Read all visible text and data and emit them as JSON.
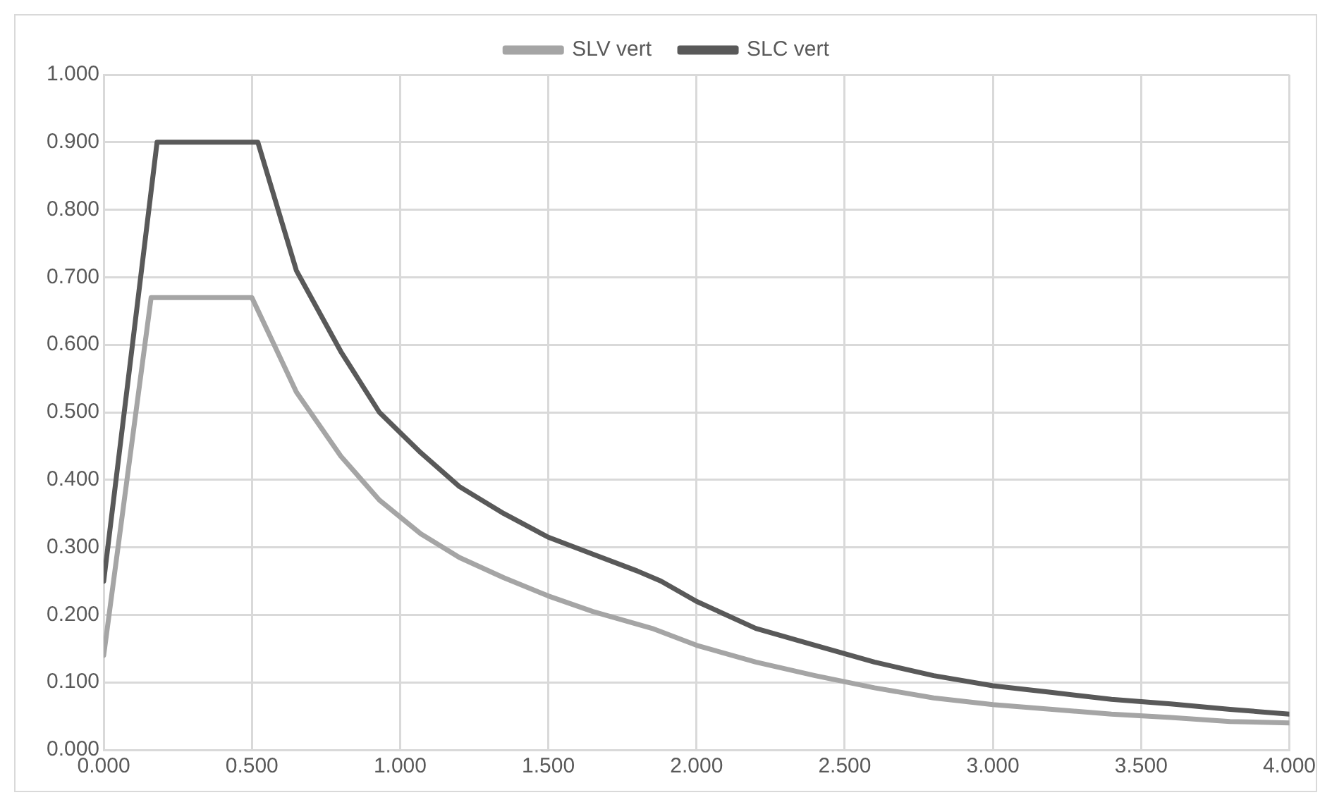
{
  "chart_data": {
    "type": "line",
    "legend": "top",
    "grid": true,
    "marker": "none",
    "line_style": "solid",
    "xlim": [
      0,
      4
    ],
    "xticks": [
      {
        "value": 0,
        "label": "0.000"
      },
      {
        "value": 0.5,
        "label": "0.500"
      },
      {
        "value": 1,
        "label": "1.000"
      },
      {
        "value": 1.5,
        "label": "1.500"
      },
      {
        "value": 2,
        "label": "2.000"
      },
      {
        "value": 2.5,
        "label": "2.500"
      },
      {
        "value": 3,
        "label": "3.000"
      },
      {
        "value": 3.5,
        "label": "3.500"
      },
      {
        "value": 4,
        "label": "4.000"
      }
    ],
    "ylim": [
      0,
      1
    ],
    "yticks": [
      {
        "value": 0,
        "label": "0.000"
      },
      {
        "value": 0.1,
        "label": "0.100"
      },
      {
        "value": 0.2,
        "label": "0.200"
      },
      {
        "value": 0.3,
        "label": "0.300"
      },
      {
        "value": 0.4,
        "label": "0.400"
      },
      {
        "value": 0.5,
        "label": "0.500"
      },
      {
        "value": 0.6,
        "label": "0.600"
      },
      {
        "value": 0.7,
        "label": "0.700"
      },
      {
        "value": 0.8,
        "label": "0.800"
      },
      {
        "value": 0.9,
        "label": "0.900"
      },
      {
        "value": 1,
        "label": "1.000"
      }
    ],
    "series": [
      {
        "name": "SLV vert",
        "color": "#a5a5a5",
        "x": [
          0,
          0.16,
          0.5,
          0.65,
          0.8,
          0.93,
          1.07,
          1.2,
          1.35,
          1.5,
          1.65,
          1.85,
          2.0,
          2.2,
          2.4,
          2.6,
          2.8,
          3.0,
          3.2,
          3.4,
          3.6,
          3.8,
          4.0
        ],
        "values": [
          0.14,
          0.67,
          0.67,
          0.53,
          0.435,
          0.37,
          0.32,
          0.285,
          0.255,
          0.228,
          0.205,
          0.18,
          0.155,
          0.13,
          0.11,
          0.092,
          0.077,
          0.067,
          0.06,
          0.053,
          0.048,
          0.042,
          0.04
        ]
      },
      {
        "name": "SLC vert",
        "color": "#595959",
        "x": [
          0,
          0.18,
          0.52,
          0.65,
          0.8,
          0.93,
          1.07,
          1.2,
          1.35,
          1.5,
          1.65,
          1.8,
          1.88,
          2.0,
          2.2,
          2.4,
          2.6,
          2.8,
          3.0,
          3.2,
          3.4,
          3.6,
          3.8,
          4.0
        ],
        "values": [
          0.25,
          0.9,
          0.9,
          0.71,
          0.59,
          0.5,
          0.44,
          0.39,
          0.35,
          0.315,
          0.29,
          0.265,
          0.25,
          0.22,
          0.18,
          0.155,
          0.13,
          0.11,
          0.095,
          0.085,
          0.075,
          0.068,
          0.06,
          0.053
        ]
      }
    ]
  }
}
